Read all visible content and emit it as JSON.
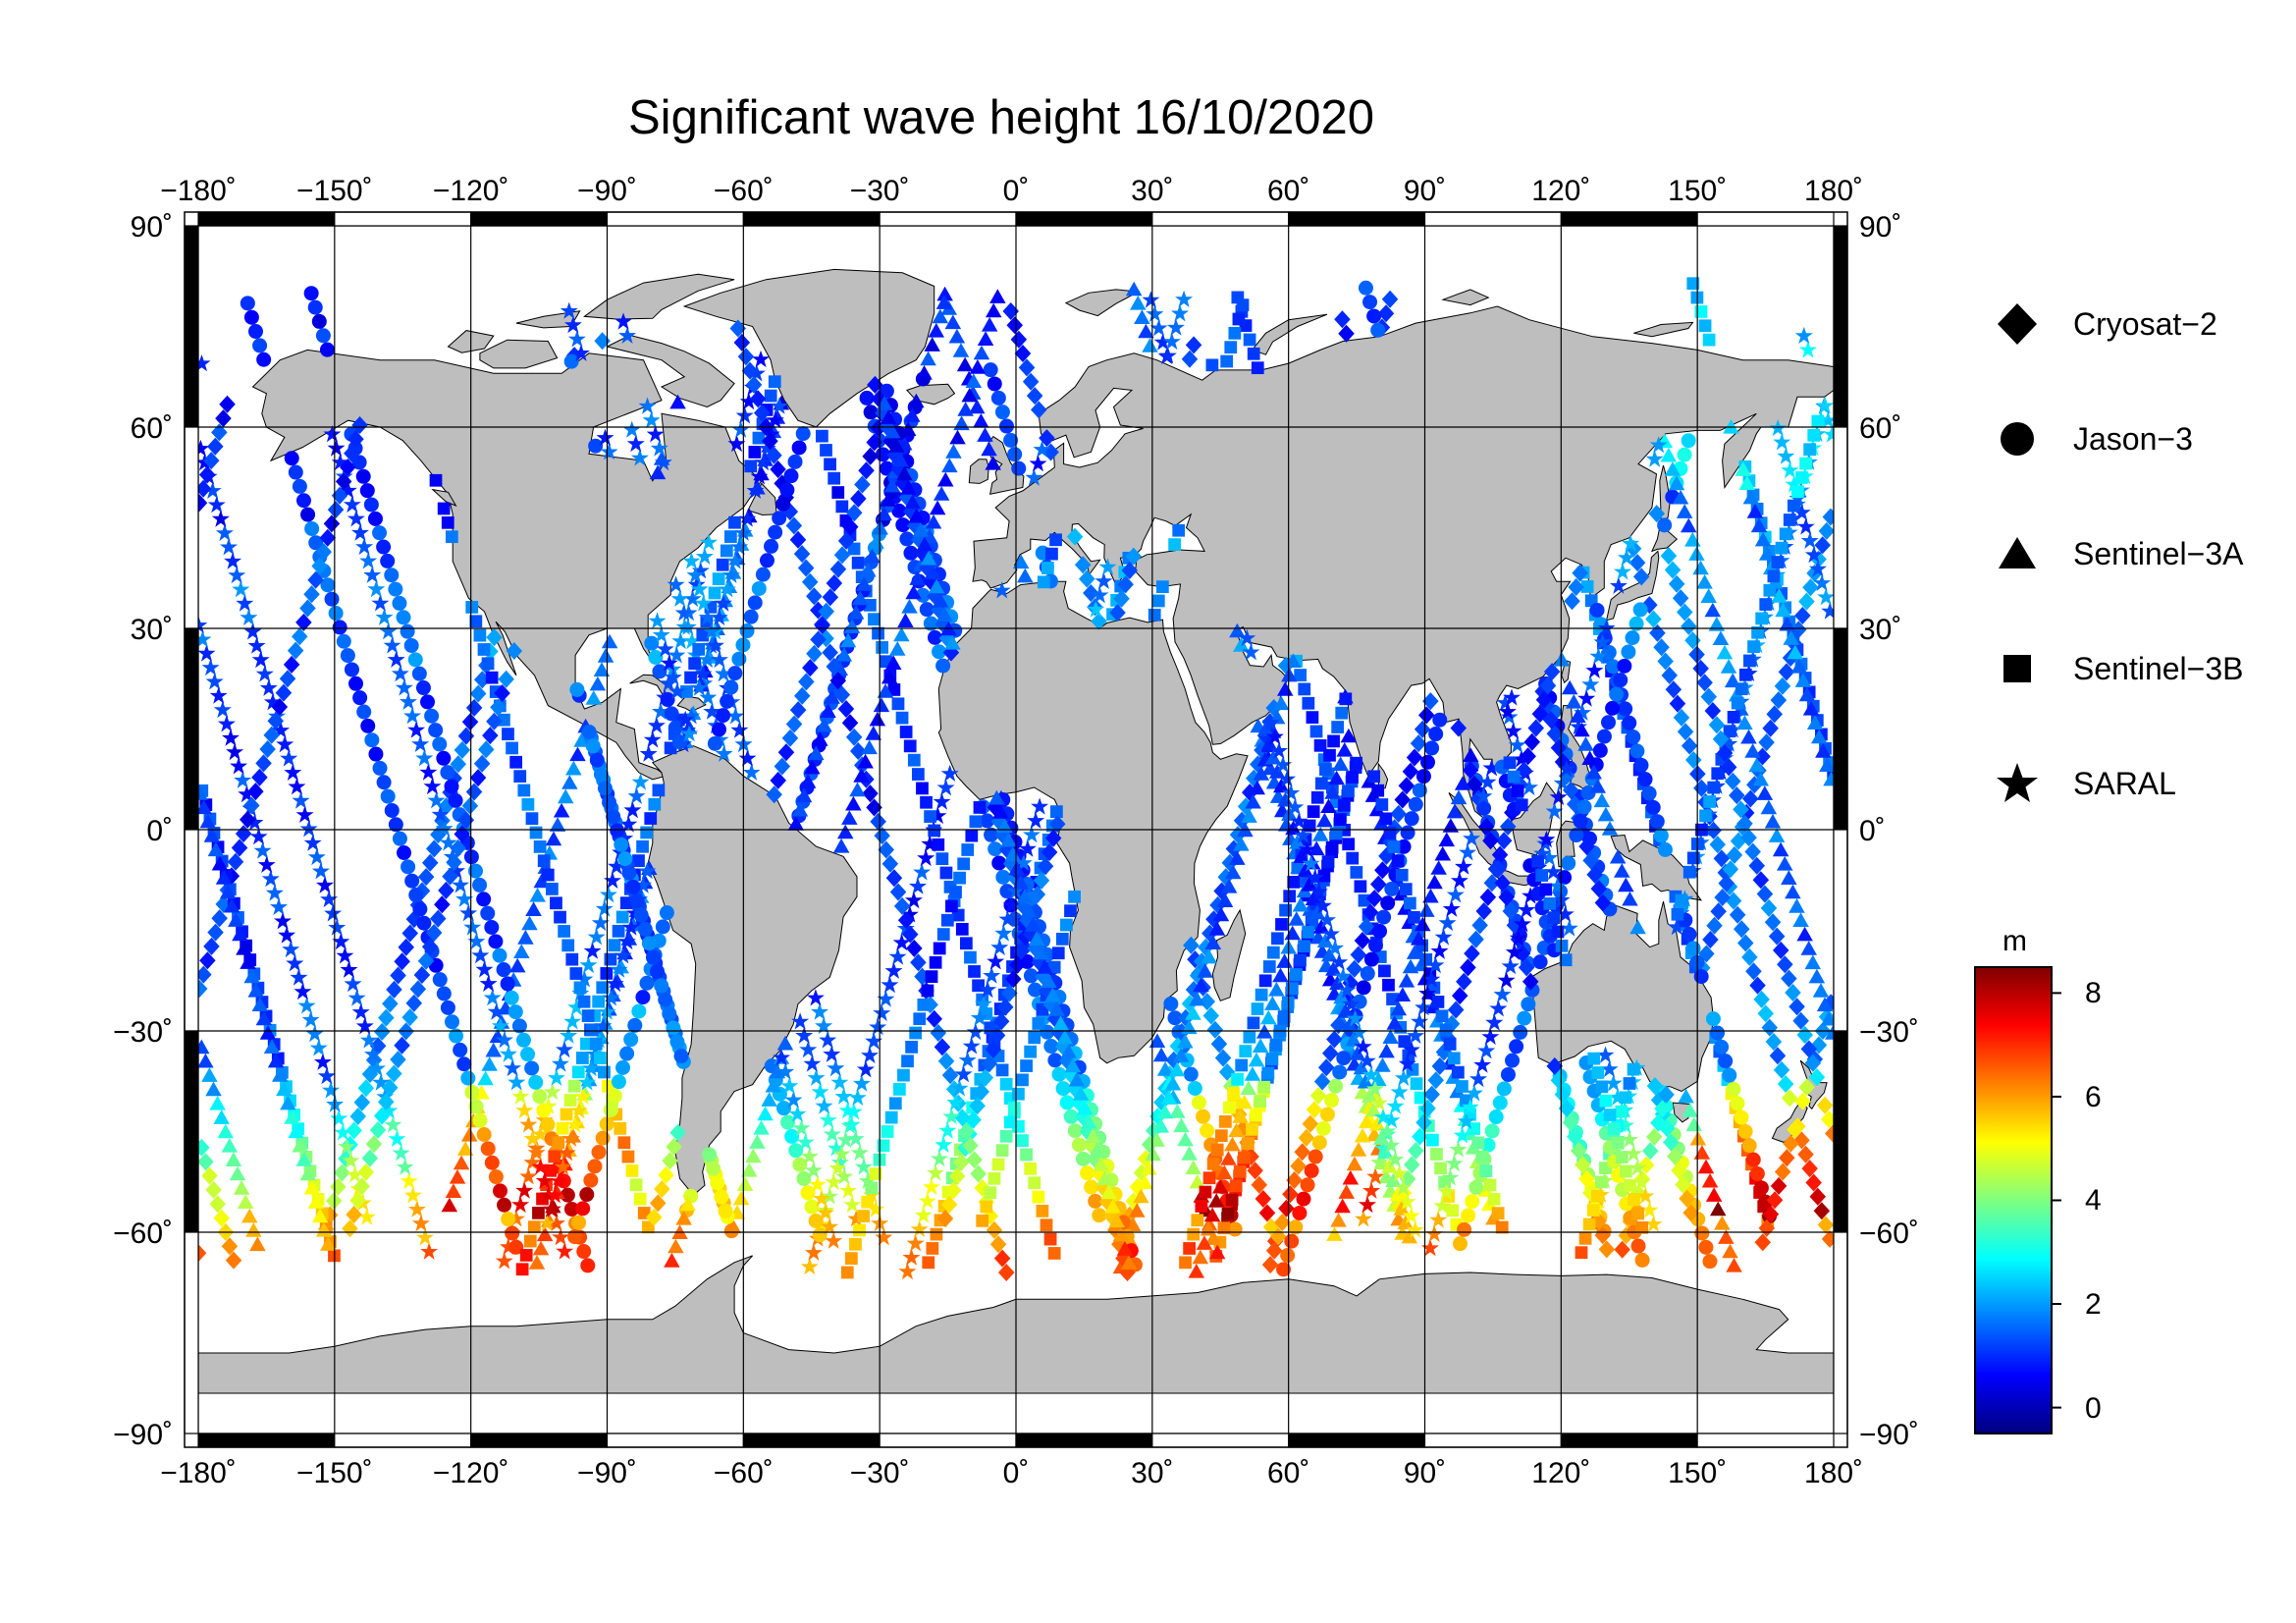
{
  "title": "Significant wave height 16/10/2020",
  "axes": {
    "lon_ticks": [
      "−180˚",
      "−150˚",
      "−120˚",
      "−90˚",
      "−60˚",
      "−30˚",
      "0˚",
      "30˚",
      "60˚",
      "90˚",
      "120˚",
      "150˚",
      "180˚"
    ],
    "lat_ticks_left": [
      "90˚",
      "60˚",
      "30˚",
      "0˚",
      "−30˚",
      "−60˚",
      "−90˚"
    ],
    "lat_ticks_right": [
      "90˚",
      "60˚",
      "30˚",
      "0˚",
      "−30˚",
      "−60˚",
      "−90˚"
    ],
    "lon_range": [
      -180,
      180
    ],
    "lat_range": [
      -90,
      90
    ],
    "grid_spacing_lon": 30,
    "grid_spacing_lat": 30
  },
  "legend": {
    "items": [
      {
        "label": "Cryosat−2",
        "symbol": "diamond"
      },
      {
        "label": "Jason−3",
        "symbol": "circle"
      },
      {
        "label": "Sentinel−3A",
        "symbol": "triangle"
      },
      {
        "label": "Sentinel−3B",
        "symbol": "square"
      },
      {
        "label": "SARAL",
        "symbol": "star"
      }
    ]
  },
  "colorbar": {
    "unit": "m",
    "ticks": [
      "8",
      "6",
      "4",
      "2",
      "0"
    ],
    "range": [
      -0.5,
      8.5
    ],
    "colors": [
      "#00007f",
      "#0000ff",
      "#007fff",
      "#00ffff",
      "#7fff7f",
      "#ffff00",
      "#ff7f00",
      "#ff0000",
      "#7f0000"
    ]
  },
  "colors": {
    "land": "#bebebe",
    "ocean": "#ffffff",
    "grid": "#000000"
  }
}
